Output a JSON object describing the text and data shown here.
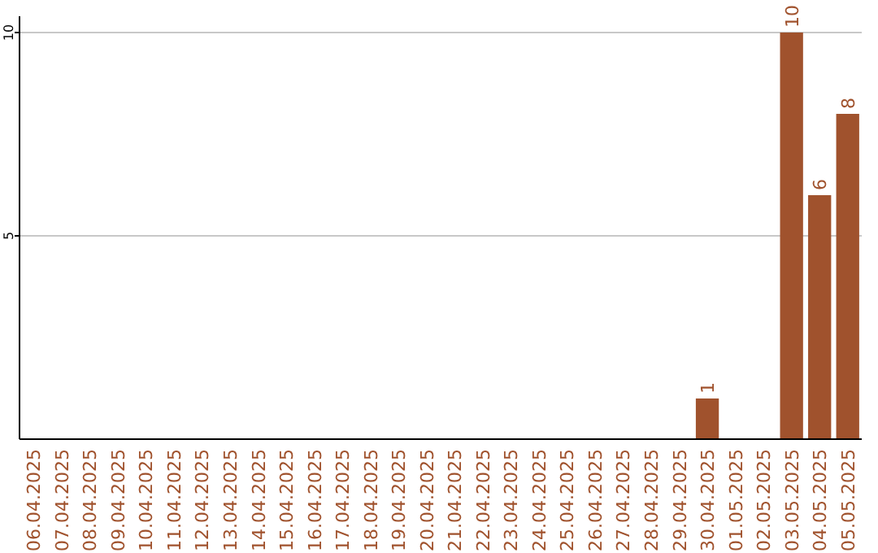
{
  "chart_data": {
    "type": "bar",
    "categories": [
      "06.04.2025",
      "07.04.2025",
      "08.04.2025",
      "09.04.2025",
      "10.04.2025",
      "11.04.2025",
      "12.04.2025",
      "13.04.2025",
      "14.04.2025",
      "15.04.2025",
      "16.04.2025",
      "17.04.2025",
      "18.04.2025",
      "19.04.2025",
      "20.04.2025",
      "21.04.2025",
      "22.04.2025",
      "23.04.2025",
      "24.04.2025",
      "25.04.2025",
      "26.04.2025",
      "27.04.2025",
      "28.04.2025",
      "29.04.2025",
      "30.04.2025",
      "01.05.2025",
      "02.05.2025",
      "03.05.2025",
      "04.05.2025",
      "05.05.2025"
    ],
    "values": [
      0,
      0,
      0,
      0,
      0,
      0,
      0,
      0,
      0,
      0,
      0,
      0,
      0,
      0,
      0,
      0,
      0,
      0,
      0,
      0,
      0,
      0,
      0,
      0,
      1,
      0,
      0,
      10,
      6,
      8
    ],
    "value_labels": [
      null,
      null,
      null,
      null,
      null,
      null,
      null,
      null,
      null,
      null,
      null,
      null,
      null,
      null,
      null,
      null,
      null,
      null,
      null,
      null,
      null,
      null,
      null,
      null,
      "1",
      null,
      null,
      "10",
      "6",
      "8"
    ],
    "color": "#a0522d",
    "ylim": [
      0,
      10
    ],
    "yticks": [
      5,
      10
    ],
    "grid": "y"
  }
}
